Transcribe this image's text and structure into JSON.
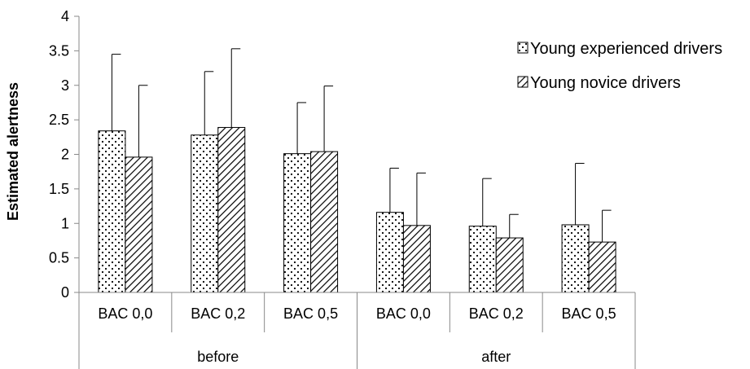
{
  "chart_data": {
    "type": "bar",
    "ylabel": "Estimated alertness",
    "ylim": [
      0,
      4
    ],
    "ytick_step": 0.5,
    "ytick_labels": [
      "0",
      "0.5",
      "1",
      "1.5",
      "2",
      "2.5",
      "3",
      "3.5",
      "4"
    ],
    "grid": false,
    "legend_position": "top-right",
    "groups": [
      {
        "label": "before",
        "categories": [
          "BAC 0,0",
          "BAC 0,2",
          "BAC 0,5"
        ]
      },
      {
        "label": "after",
        "categories": [
          "BAC 0,0",
          "BAC 0,2",
          "BAC 0,5"
        ]
      }
    ],
    "categories": [
      "BAC 0,0",
      "BAC 0,2",
      "BAC 0,5",
      "BAC 0,0",
      "BAC 0,2",
      "BAC 0,5"
    ],
    "series": [
      {
        "name": "Young experienced drivers",
        "pattern": "dots",
        "values": [
          2.34,
          2.28,
          2.01,
          1.16,
          0.96,
          0.98
        ],
        "error_upper": [
          3.45,
          3.2,
          2.75,
          1.8,
          1.65,
          1.87
        ]
      },
      {
        "name": "Young novice drivers",
        "pattern": "hatch",
        "values": [
          1.96,
          2.39,
          2.04,
          0.97,
          0.79,
          0.73
        ],
        "error_upper": [
          3.0,
          3.53,
          2.99,
          1.73,
          1.13,
          1.19
        ]
      }
    ]
  }
}
